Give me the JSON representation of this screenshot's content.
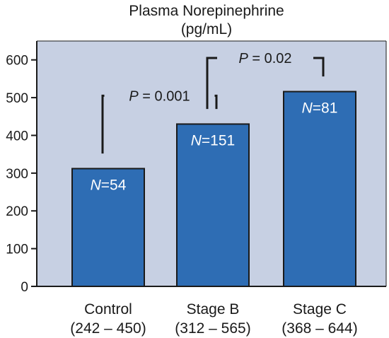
{
  "chart_data": {
    "type": "bar",
    "title": "Plasma Norepinephrine",
    "subtitle": "(pg/mL)",
    "xlabel": "",
    "ylabel": "",
    "ylim": [
      0,
      650
    ],
    "yticks": [
      0,
      100,
      200,
      300,
      400,
      500,
      600
    ],
    "yticks_text": [
      "0",
      "100",
      "200",
      "300",
      "400",
      "500",
      "600"
    ],
    "grid": false,
    "categories": [
      "Control",
      "Stage B",
      "Stage C"
    ],
    "ranges": [
      "(242 – 450)",
      "(312 – 565)",
      "(368 – 644)"
    ],
    "values": [
      312,
      430,
      516
    ],
    "n_values": [
      "54",
      "151",
      "81"
    ],
    "n_symbol": "N",
    "n_eq": "=",
    "comparisons": [
      {
        "from": 0,
        "to": 1,
        "bracket_y": 505,
        "p_symbol": "P",
        "p_text": "= 0.001"
      },
      {
        "from": 1,
        "to": 2,
        "bracket_y": 605,
        "p_symbol": "P",
        "p_text": "= 0.02"
      }
    ],
    "colors": {
      "bar_fill": "#2e6db4",
      "bar_stroke": "#1a1a1a",
      "plot_bg": "#c7d0e3",
      "axis": "#1a1a1a"
    }
  }
}
